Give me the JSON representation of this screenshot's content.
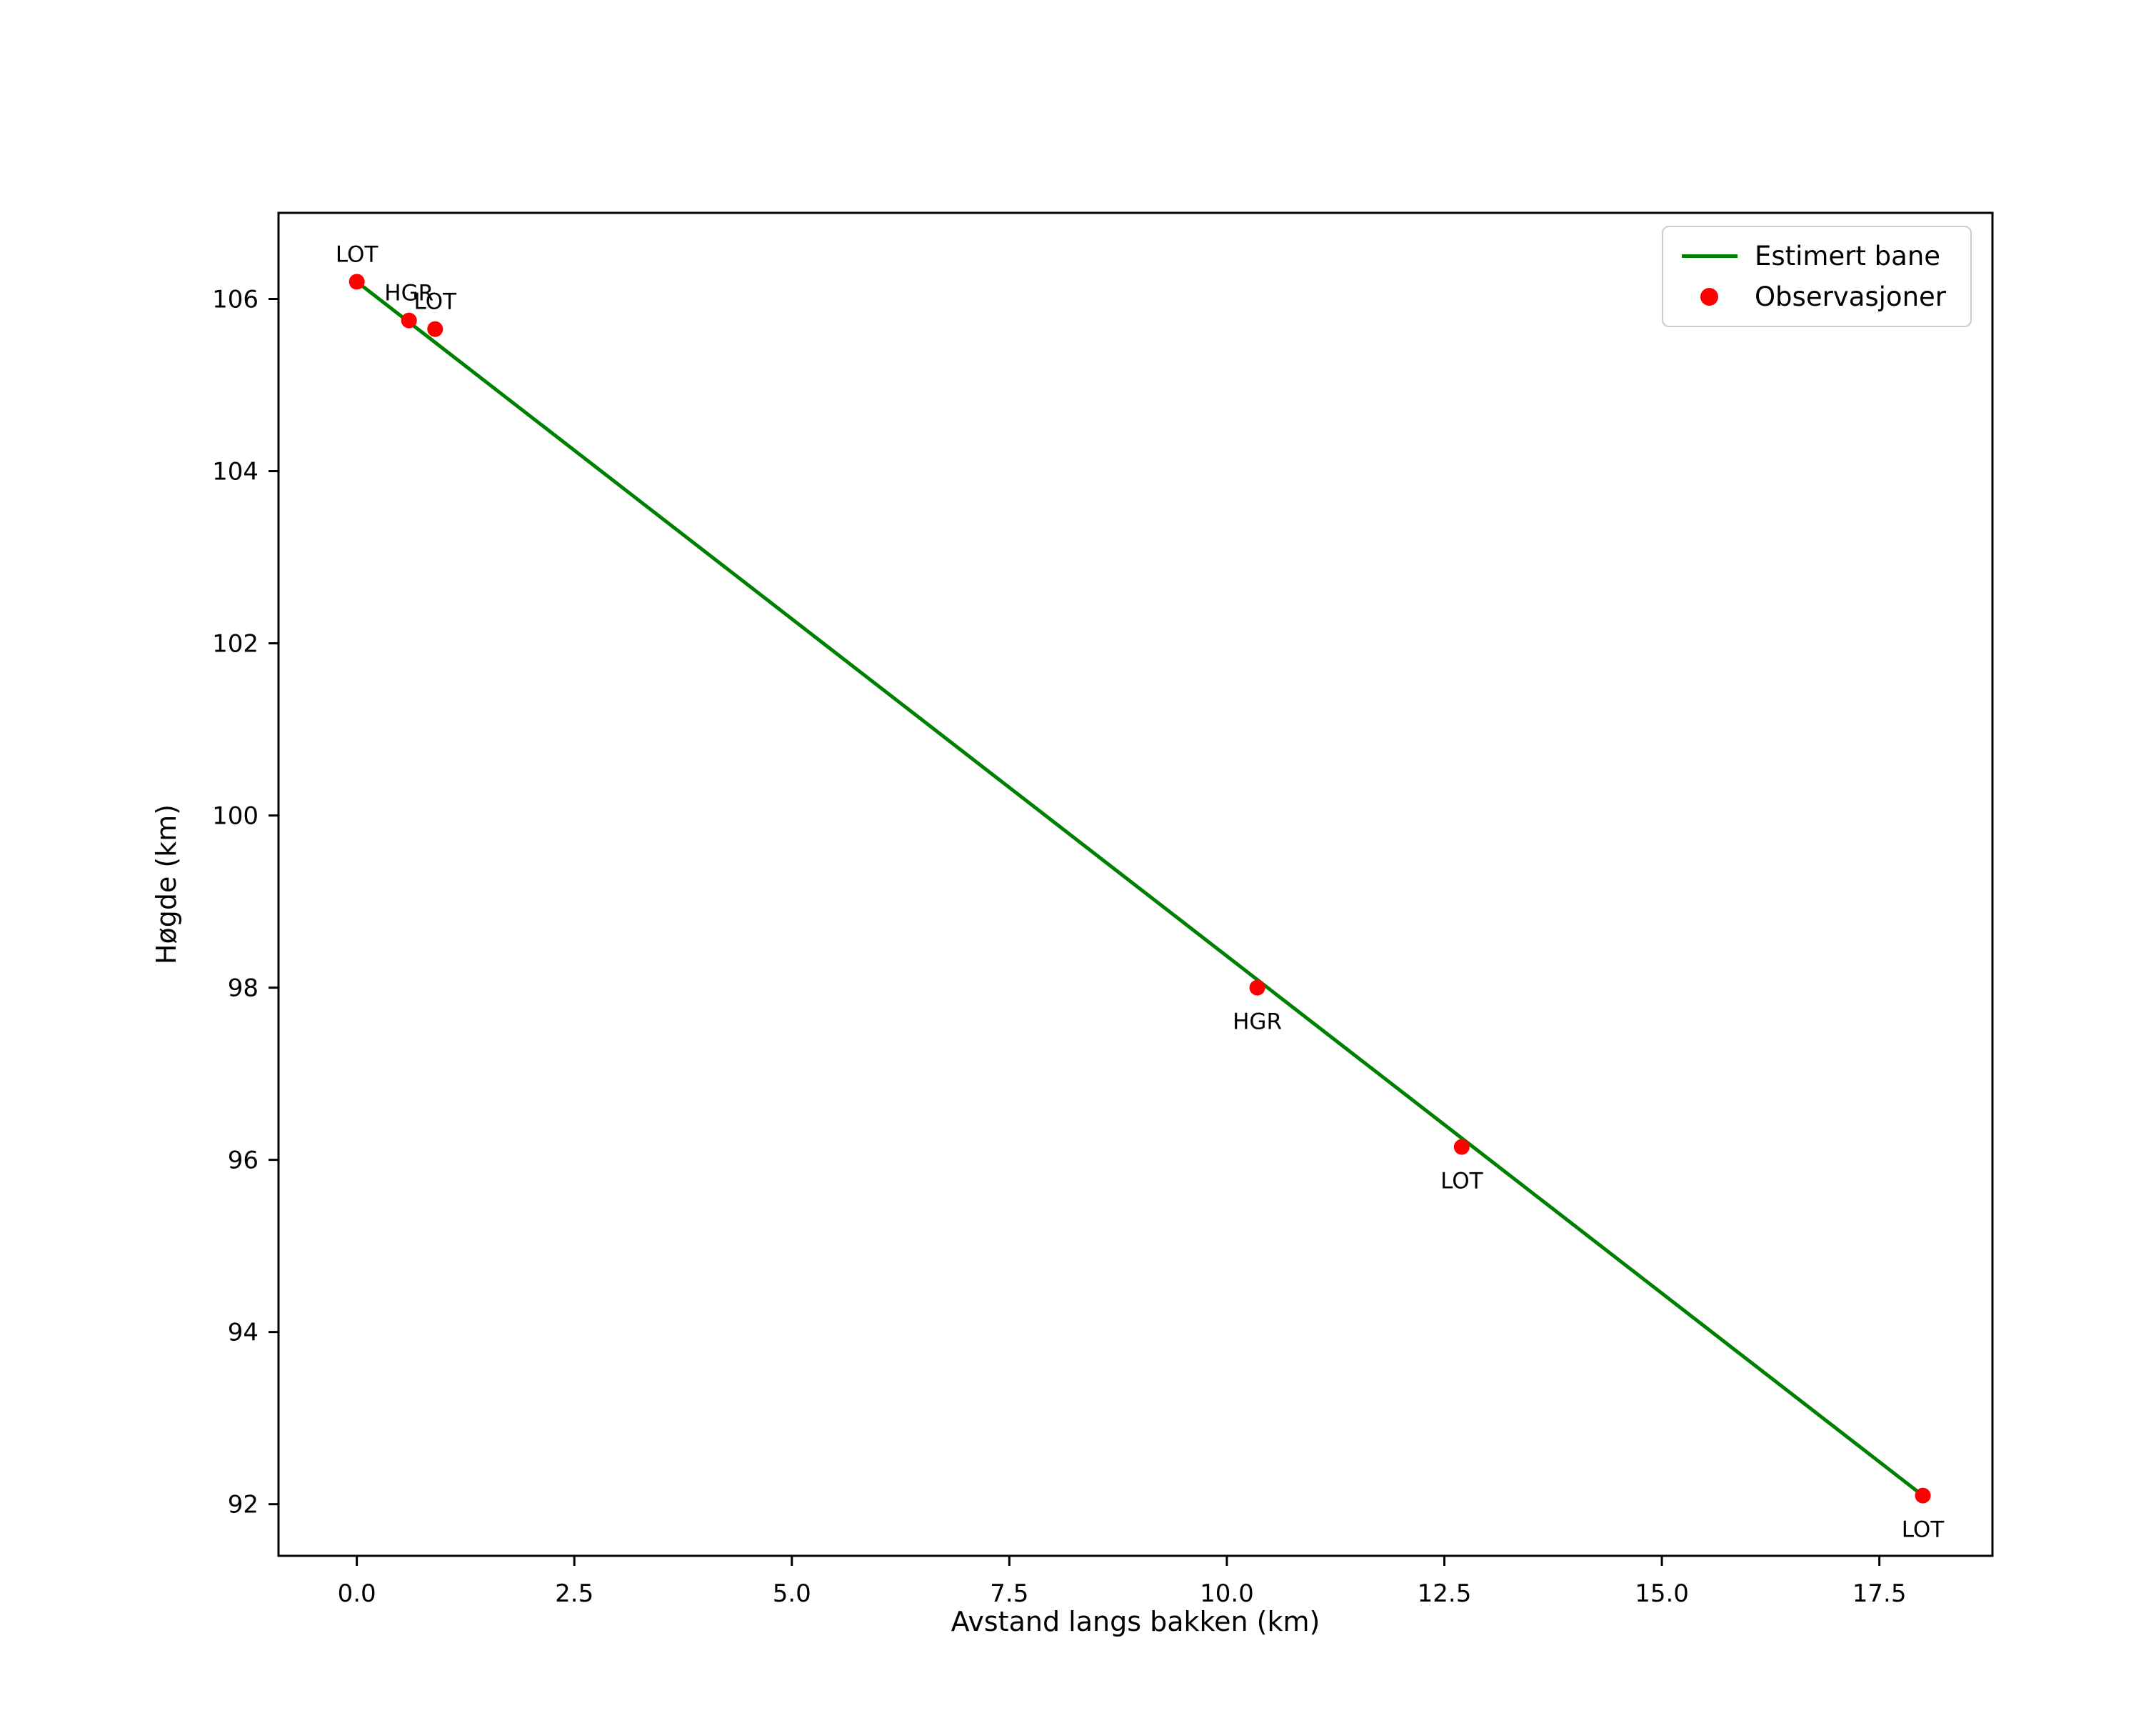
{
  "chart_data": {
    "type": "line",
    "title": "",
    "xlabel": "Avstand langs bakken (km)",
    "ylabel": "Høgde (km)",
    "xlim": [
      -0.9,
      18.8
    ],
    "ylim": [
      91.4,
      107.0
    ],
    "grid": false,
    "x_ticks": [
      0.0,
      2.5,
      5.0,
      7.5,
      10.0,
      12.5,
      15.0,
      17.5
    ],
    "x_tick_labels": [
      "0.0",
      "2.5",
      "5.0",
      "7.5",
      "10.0",
      "12.5",
      "15.0",
      "17.5"
    ],
    "y_ticks": [
      92,
      94,
      96,
      98,
      100,
      102,
      104,
      106
    ],
    "y_tick_labels": [
      "92",
      "94",
      "96",
      "98",
      "100",
      "102",
      "104",
      "106"
    ],
    "series": [
      {
        "name": "Estimert bane",
        "type": "line",
        "color": "#008000",
        "points": [
          {
            "x": 0.0,
            "y": 106.2
          },
          {
            "x": 18.0,
            "y": 92.1
          }
        ]
      },
      {
        "name": "Observasjoner",
        "type": "scatter",
        "color": "#ff0000",
        "points": [
          {
            "x": 0.0,
            "y": 106.2,
            "label": "LOT",
            "label_position": "above"
          },
          {
            "x": 0.6,
            "y": 105.75,
            "label": "HGR",
            "label_position": "above"
          },
          {
            "x": 0.9,
            "y": 105.65,
            "label": "LOT",
            "label_position": "above"
          },
          {
            "x": 10.35,
            "y": 98.0,
            "label": "HGR",
            "label_position": "below"
          },
          {
            "x": 12.7,
            "y": 96.15,
            "label": "LOT",
            "label_position": "below"
          },
          {
            "x": 18.0,
            "y": 92.1,
            "label": "LOT",
            "label_position": "below"
          }
        ]
      }
    ],
    "legend": {
      "position": "upper right",
      "entries": [
        {
          "label": "Estimert bane",
          "type": "line",
          "color": "#008000"
        },
        {
          "label": "Observasjoner",
          "type": "marker",
          "color": "#ff0000"
        }
      ]
    },
    "colors": {
      "line": "#008000",
      "marker": "#ff0000",
      "axis": "#000000",
      "background": "#ffffff"
    }
  }
}
